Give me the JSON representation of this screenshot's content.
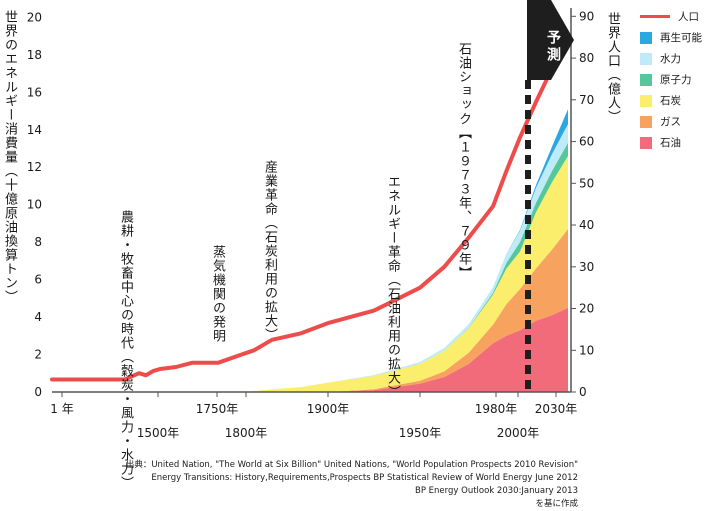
{
  "chart_data": {
    "type": "area",
    "ylabel_left": "世界のエネルギー消費量（十億原油換算トン）",
    "ylabel_right": "世界人口（億人）",
    "y_left_ticks": [
      "0",
      "2",
      "4",
      "6",
      "8",
      "10",
      "12",
      "14",
      "16",
      "18",
      "20"
    ],
    "y_right_ticks": [
      "0",
      "10",
      "20",
      "30",
      "40",
      "50",
      "60",
      "70",
      "80",
      "90"
    ],
    "ylim_left": [
      0,
      20.5
    ],
    "ylim_right": [
      0,
      92
    ],
    "x_ticks_row1": [
      "1 年",
      "1750年",
      "1900年",
      "1980年",
      "2030年"
    ],
    "x_ticks_row2": [
      "1500年",
      "1800年",
      "1950年",
      "2000年"
    ],
    "x": [
      "1",
      "1000",
      "1500",
      "1600",
      "1700",
      "1750",
      "1800",
      "1820",
      "1850",
      "1875",
      "1900",
      "1925",
      "1950",
      "1960",
      "1970",
      "1980",
      "1990",
      "2000",
      "2010",
      "2020",
      "2030"
    ],
    "series": [
      {
        "name": "石油",
        "values": [
          0,
          0,
          0,
          0,
          0,
          0,
          0,
          0,
          0,
          0,
          0,
          0.1,
          0.45,
          0.8,
          1.5,
          2.6,
          3.0,
          3.3,
          3.8,
          4.1,
          4.5
        ]
      },
      {
        "name": "ガス",
        "values": [
          0,
          0,
          0,
          0,
          0,
          0,
          0,
          0,
          0,
          0,
          0,
          0.05,
          0.15,
          0.3,
          0.6,
          1.0,
          1.7,
          2.2,
          2.8,
          3.5,
          4.2
        ]
      },
      {
        "name": "石炭",
        "values": [
          0,
          0,
          0,
          0,
          0,
          0,
          0,
          0.05,
          0.15,
          0.25,
          0.5,
          0.7,
          0.9,
          1.1,
          1.3,
          1.6,
          1.9,
          2.0,
          3.0,
          3.6,
          3.9
        ]
      },
      {
        "name": "原子力",
        "values": [
          0,
          0,
          0,
          0,
          0,
          0,
          0,
          0,
          0,
          0,
          0,
          0,
          0,
          0,
          0.02,
          0.1,
          0.3,
          0.5,
          0.5,
          0.6,
          0.7
        ]
      },
      {
        "name": "水力",
        "values": [
          0,
          0,
          0,
          0,
          0,
          0,
          0,
          0,
          0,
          0,
          0,
          0.05,
          0.1,
          0.15,
          0.2,
          0.3,
          0.5,
          0.6,
          0.8,
          0.9,
          1.0
        ]
      },
      {
        "name": "再生可能",
        "values": [
          0,
          0,
          0,
          0,
          0,
          0,
          0,
          0,
          0,
          0,
          0,
          0,
          0,
          0,
          0,
          0,
          0,
          0.05,
          0.15,
          0.4,
          0.8
        ]
      }
    ],
    "population": {
      "name": "人口",
      "x": [
        "1",
        "1000",
        "1200",
        "1300",
        "1400",
        "1500",
        "1600",
        "1700",
        "1750",
        "1800",
        "1820",
        "1850",
        "1875",
        "1900",
        "1925",
        "1950",
        "1960",
        "1970",
        "1980",
        "1990",
        "2000",
        "2010",
        "2020",
        "2030"
      ],
      "values": [
        3.0,
        3.0,
        4.5,
        4.0,
        5.0,
        5.5,
        6.0,
        7.0,
        7.0,
        9.0,
        10.0,
        12.5,
        14.0,
        16.5,
        19.5,
        25.0,
        30.0,
        37.0,
        44.5,
        53.0,
        61.0,
        69.5,
        77.5,
        83.0
      ]
    },
    "colors": {
      "石油": "#f26b7a",
      "ガス": "#f7a25f",
      "石炭": "#fbee6c",
      "原子力": "#55c79a",
      "水力": "#bfeaf7",
      "再生可能": "#2ca8e0",
      "人口": "#ee4b4b",
      "forecast": "#1e1e1e"
    },
    "annotations": [
      {
        "text": "農耕・牧畜中心の時代（穀炭・風力・水力）"
      },
      {
        "text": "蒸気機関の発明"
      },
      {
        "text": "産業革命（石炭利用の拡大）"
      },
      {
        "text": "エネルギー革命（石油利用の拡大）"
      },
      {
        "text": "石油ショック【１９７３年、７９年】"
      },
      {
        "text": "予測"
      }
    ]
  },
  "legend": [
    {
      "label": "人口",
      "kind": "line",
      "color": "#ee4b4b"
    },
    {
      "label": "再生可能",
      "kind": "box",
      "color": "#2ca8e0"
    },
    {
      "label": "水力",
      "kind": "box",
      "color": "#bfeaf7"
    },
    {
      "label": "原子力",
      "kind": "box",
      "color": "#55c79a"
    },
    {
      "label": "石炭",
      "kind": "box",
      "color": "#fbee6c"
    },
    {
      "label": "ガス",
      "kind": "box",
      "color": "#f7a25f"
    },
    {
      "label": "石油",
      "kind": "box",
      "color": "#f26b7a"
    }
  ],
  "source": {
    "line1": "出典：United Nation, \"The World at Six Billion\" United Nations, \"World Population Prospects 2010 Revision\"",
    "line2": "Energy Transitions: History,Requirements,Prospects BP Statistical Review of World Energy June 2012",
    "line3": "BP Energy Outlook 2030:January 2013",
    "line4": "を基に作成"
  }
}
